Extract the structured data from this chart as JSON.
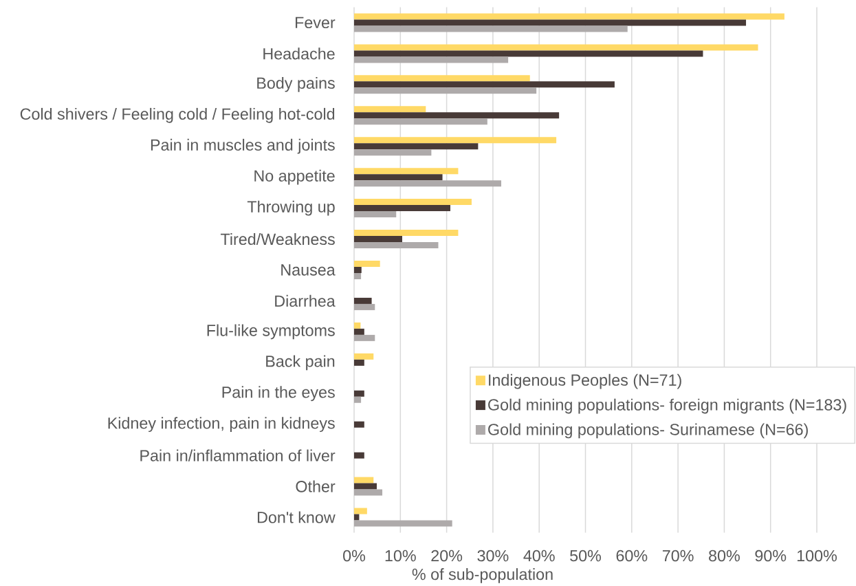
{
  "chart_data": {
    "type": "bar",
    "orientation": "horizontal",
    "xlabel": "% of sub-population",
    "categories": [
      "Fever",
      "Headache",
      "Body pains",
      "Cold shivers / Feeling cold / Feeling hot-cold",
      "Pain in muscles and joints",
      "No appetite",
      "Throwing up",
      "Tired/Weakness",
      "Nausea",
      "Diarrhea",
      "Flu-like symptoms",
      "Back pain",
      "Pain in the eyes",
      "Kidney infection, pain in kidneys",
      "Pain in/inflammation of liver",
      "Other",
      "Don't know"
    ],
    "series": [
      {
        "name": "Indigenous Peoples (N=71)",
        "color": "#ffd966",
        "values": [
          93.0,
          87.3,
          38.0,
          15.5,
          43.7,
          22.5,
          25.4,
          22.5,
          5.6,
          null,
          1.4,
          4.2,
          null,
          null,
          null,
          4.2,
          2.8
        ]
      },
      {
        "name": "Gold mining populations- foreign migrants (N=183)",
        "color": "#483a37",
        "values": [
          84.7,
          75.4,
          56.3,
          44.3,
          26.8,
          19.1,
          20.8,
          10.4,
          1.6,
          3.8,
          2.2,
          2.2,
          2.2,
          2.2,
          2.2,
          4.9,
          1.1
        ]
      },
      {
        "name": "Gold mining populations- Surinamese (N=66)",
        "color": "#aeaaaa",
        "values": [
          59.1,
          33.3,
          39.4,
          28.8,
          16.7,
          31.8,
          9.1,
          18.2,
          1.5,
          4.5,
          4.5,
          null,
          1.5,
          null,
          null,
          6.1,
          21.2
        ]
      }
    ],
    "xlim": [
      0,
      100
    ],
    "xticks": [
      {
        "value": 0,
        "label": "0%"
      },
      {
        "value": 10,
        "label": "10%"
      },
      {
        "value": 20,
        "label": "20%"
      },
      {
        "value": 30,
        "label": "30%"
      },
      {
        "value": 40,
        "label": "40%"
      },
      {
        "value": 50,
        "label": "50%"
      },
      {
        "value": 60,
        "label": "60%"
      },
      {
        "value": 70,
        "label": "70%"
      },
      {
        "value": 80,
        "label": "80%"
      },
      {
        "value": 90,
        "label": "90%"
      },
      {
        "value": 100,
        "label": "100%"
      }
    ],
    "grid": "x",
    "legend": "bottom right"
  }
}
